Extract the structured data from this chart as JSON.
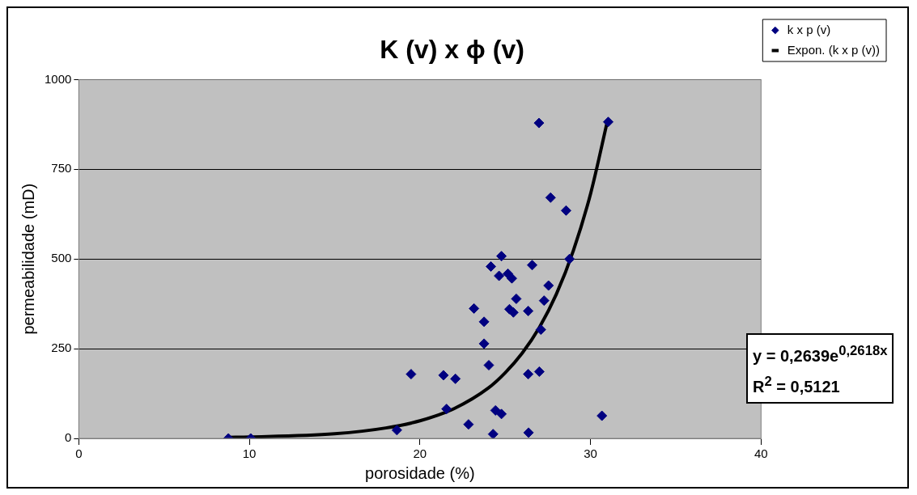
{
  "chart_data": {
    "type": "scatter",
    "title": "K (v) x ϕ (v)",
    "xlabel": "porosidade (%)",
    "ylabel": "permeabilidade (mD)",
    "xlim": [
      0,
      40
    ],
    "xticks": [
      0,
      10,
      20,
      30,
      40
    ],
    "ylim": [
      0,
      1000
    ],
    "yticks": [
      0,
      250,
      500,
      750,
      1000
    ],
    "grid": "y",
    "legend": "top right",
    "marker": "diamond",
    "series": [
      {
        "name": "k x p (v)",
        "color": "#000080",
        "x": [
          26.98,
          31.04,
          27.66,
          28.57,
          28.77,
          24.78,
          24.16,
          26.58,
          24.64,
          25.39,
          25.16,
          27.54,
          25.65,
          27.28,
          23.17,
          25.25,
          25.48,
          26.35,
          23.76,
          27.09,
          23.76,
          24.04,
          19.48,
          21.38,
          22.08,
          26.35,
          27.0,
          21.56,
          24.43,
          24.78,
          22.85,
          24.29,
          26.37,
          18.65,
          30.67,
          8.77,
          10.08
        ],
        "values": [
          879,
          882,
          671,
          635,
          500,
          508,
          479,
          483,
          453,
          446,
          459,
          426,
          389,
          384,
          362,
          360,
          351,
          355,
          325,
          303,
          264,
          204,
          179,
          176,
          166,
          179,
          186,
          82,
          78,
          68,
          39,
          12,
          16,
          23,
          63,
          0,
          0
        ]
      },
      {
        "name": "Expon. (k x p (v))",
        "type": "line",
        "color": "#000000",
        "marker": "none",
        "x": [
          8.8,
          10,
          15,
          18,
          20,
          22,
          24,
          25,
          26,
          27,
          28,
          29,
          30,
          31
        ],
        "values": [
          3,
          4,
          13,
          29,
          49,
          83,
          140,
          183,
          238,
          309,
          402,
          524,
          681,
          886
        ]
      }
    ],
    "annotations": [
      "y = 0,2639e$^{0,2618x}$",
      "R$^{2}$ = 0,5121"
    ]
  }
}
